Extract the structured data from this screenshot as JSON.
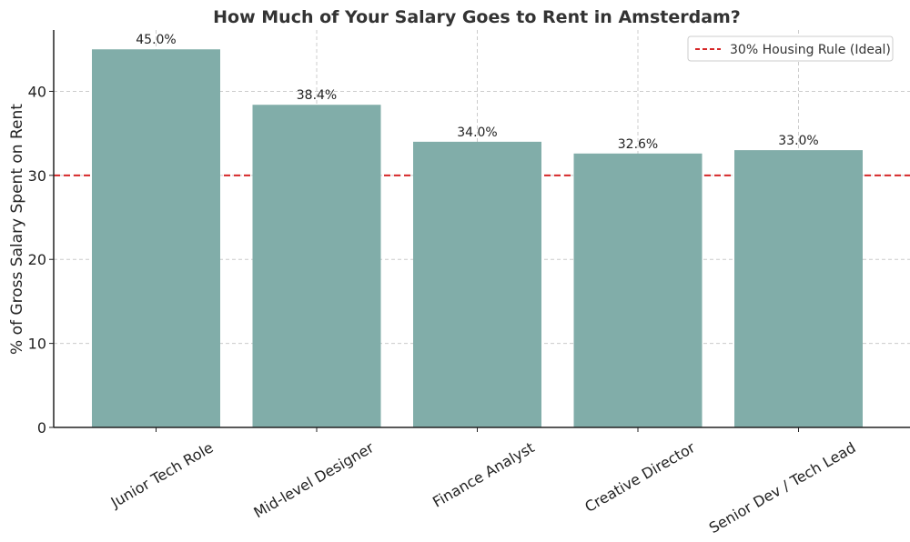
{
  "chart_data": {
    "type": "bar",
    "title": "How Much of Your Salary Goes to Rent in Amsterdam?",
    "xlabel": "",
    "ylabel": "% of Gross Salary Spent on Rent",
    "categories": [
      "Junior Tech Role",
      "Mid-level Designer",
      "Finance Analyst",
      "Creative Director",
      "Senior Dev / Tech Lead"
    ],
    "values": [
      45.0,
      38.4,
      34.0,
      32.6,
      33.0
    ],
    "data_labels": [
      "45.0%",
      "38.4%",
      "34.0%",
      "32.6%",
      "33.0%"
    ],
    "ylim": [
      0,
      47.3
    ],
    "yticks": [
      0,
      10,
      20,
      30,
      40
    ],
    "grid": true,
    "bar_color": "#81ada9",
    "reference_line": {
      "value": 30,
      "label": "30% Housing Rule (Ideal)",
      "color": "#d62728",
      "style": "dashed"
    },
    "legend_position": "top-right"
  }
}
